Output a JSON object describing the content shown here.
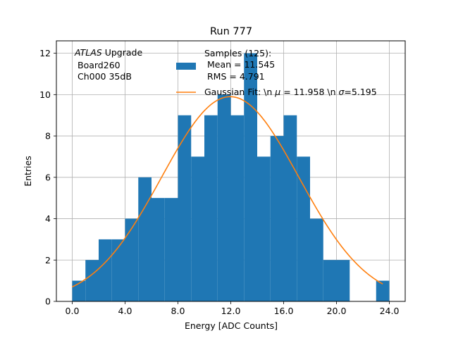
{
  "chart_data": {
    "type": "bar",
    "title": "Run 777",
    "xlabel": "Energy [ADC Counts]",
    "ylabel": "Entries",
    "xlim": [
      -1.2,
      25.2
    ],
    "ylim": [
      0,
      12.6
    ],
    "grid": true,
    "xticks": [
      0,
      4,
      8,
      12,
      16,
      20,
      24
    ],
    "xtick_labels": [
      "0.0",
      "4.0",
      "8.0",
      "12.0",
      "16.0",
      "20.0",
      "24.0"
    ],
    "yticks": [
      0,
      2,
      4,
      6,
      8,
      10,
      12
    ],
    "ytick_labels": [
      "0",
      "2",
      "4",
      "6",
      "8",
      "10",
      "12"
    ],
    "bin_edges": [
      0,
      1,
      2,
      3,
      4,
      5,
      6,
      7,
      8,
      9,
      10,
      11,
      12,
      13,
      14,
      15,
      16,
      17,
      18,
      19,
      20,
      21,
      22,
      23,
      24
    ],
    "values": [
      1,
      2,
      3,
      3,
      4,
      6,
      5,
      5,
      9,
      7,
      9,
      10,
      9,
      12,
      7,
      8,
      9,
      7,
      4,
      2,
      2,
      0,
      0,
      1
    ],
    "bar_color": "#1f77b4",
    "fit": {
      "name": "Gaussian Fit",
      "amplitude": 9.9,
      "mu": 11.958,
      "sigma": 5.195,
      "x_range": [
        0,
        23.5
      ],
      "color": "#ff7f0e"
    },
    "annotation": {
      "italic_part": "ATLAS",
      "rest": " Upgrade",
      "line2": "Board260",
      "line3": "Ch000 35dB"
    },
    "legend": {
      "position": "top-right",
      "samples_line1": "Samples (125):",
      "samples_line2": "Mean = 11.545",
      "samples_line3": "RMS = 4.791",
      "fit_prefix": "Gaussian Fit: \\n ",
      "fit_mu_symbol": "μ",
      "fit_mid": " = 11.958 \\n ",
      "fit_sigma_symbol": "σ",
      "fit_suffix": "=5.195"
    }
  }
}
